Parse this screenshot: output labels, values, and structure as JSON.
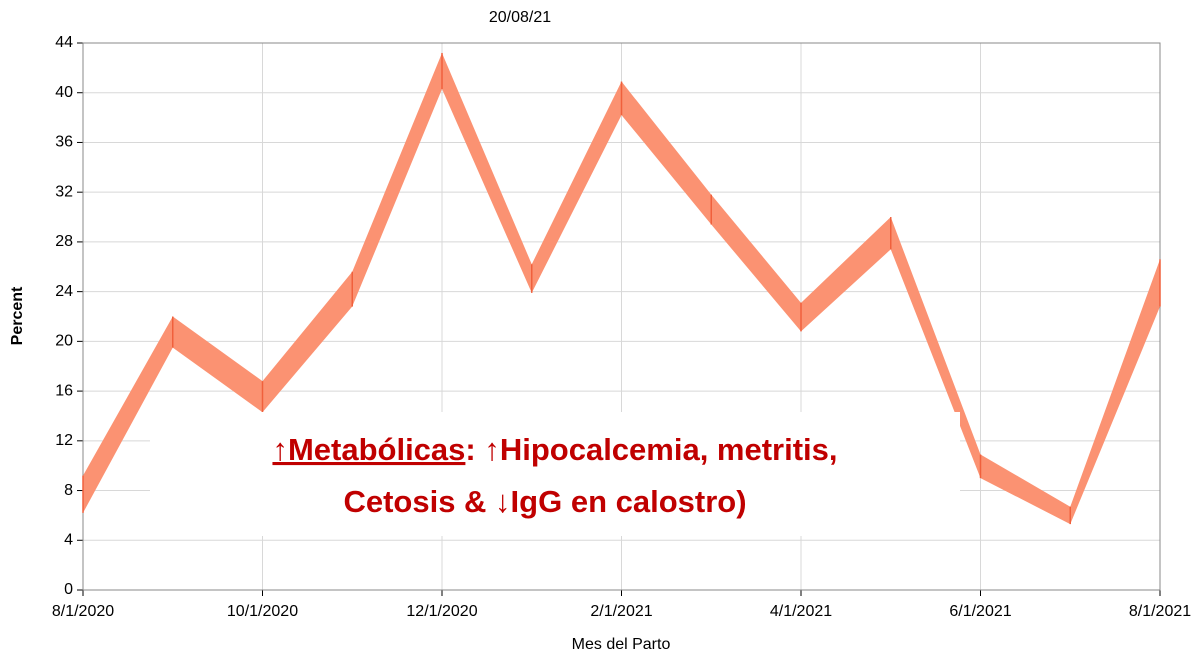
{
  "chart_data": {
    "type": "band",
    "title": "20/08/21",
    "y_label": "Percent",
    "x_label": "Mes del Parto",
    "x": [
      "8/1/2020",
      "9/1/2020",
      "10/1/2020",
      "11/1/2020",
      "12/1/2020",
      "1/1/2021",
      "2/1/2021",
      "3/1/2021",
      "4/1/2021",
      "5/1/2021",
      "6/1/2021",
      "7/1/2021",
      "8/1/2021"
    ],
    "xticks": [
      "8/1/2020",
      "10/1/2020",
      "12/1/2020",
      "2/1/2021",
      "4/1/2021",
      "6/1/2021",
      "8/1/2021"
    ],
    "band": {
      "color": "#fb9272",
      "edge_color": "#f0603c",
      "lower": [
        6.2,
        19.5,
        14.3,
        22.8,
        40.3,
        23.9,
        38.2,
        29.4,
        20.8,
        27.4,
        9.0,
        5.3,
        22.8
      ],
      "upper": [
        9.2,
        22.0,
        16.8,
        25.6,
        43.2,
        26.2,
        40.9,
        31.8,
        23.1,
        30.0,
        10.9,
        6.7,
        26.6
      ]
    },
    "ylim": [
      0,
      44
    ],
    "yticks": [
      0,
      4,
      8,
      12,
      16,
      20,
      24,
      28,
      32,
      36,
      40,
      44
    ],
    "grid": true,
    "annotation": {
      "underlined": "↑Metabólicas",
      "line1": ": ↑Hipocalcemia, metritis,",
      "line2": "Cetosis & ↓IgG en calostro)",
      "color": "#c00000"
    }
  }
}
